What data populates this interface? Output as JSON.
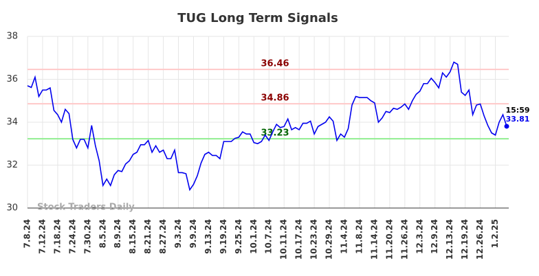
{
  "chart_data": {
    "type": "line",
    "title": "TUG Long Term Signals",
    "categories": [
      "7.8.24",
      null,
      null,
      null,
      "7.12.24",
      null,
      null,
      null,
      "7.18.24",
      null,
      null,
      null,
      "7.24.24",
      null,
      null,
      null,
      "7.30.24",
      null,
      null,
      null,
      "8.5.24",
      null,
      null,
      null,
      "8.9.24",
      null,
      null,
      null,
      "8.15.24",
      null,
      null,
      null,
      "8.21.24",
      null,
      null,
      null,
      "8.27.24",
      null,
      null,
      null,
      "9.3.24",
      null,
      null,
      null,
      "9.9.24",
      null,
      null,
      null,
      "9.13.24",
      null,
      null,
      null,
      "9.19.24",
      null,
      null,
      null,
      "9.25.24",
      null,
      null,
      null,
      "10.1.24",
      null,
      null,
      null,
      "10.7.24",
      null,
      null,
      null,
      "10.11.24",
      null,
      null,
      null,
      "10.17.24",
      null,
      null,
      null,
      "10.23.24",
      null,
      null,
      null,
      "10.29.24",
      null,
      null,
      null,
      "11.4.24",
      null,
      null,
      null,
      "11.8.24",
      null,
      null,
      null,
      "11.14.24",
      null,
      null,
      null,
      "11.20.24",
      null,
      null,
      null,
      "11.26.24",
      null,
      null,
      null,
      "12.3.24",
      null,
      null,
      null,
      "12.9.24",
      null,
      null,
      null,
      "12.13.24",
      null,
      null,
      null,
      "12.19.24",
      null,
      null,
      null,
      "12.26.24",
      null,
      null,
      null,
      "1.2.25",
      null,
      null,
      null
    ],
    "series": [
      {
        "color": "#0000ee",
        "values": [
          35.7,
          35.62,
          36.1,
          35.2,
          35.5,
          35.5,
          35.6,
          34.55,
          34.35,
          34.0,
          34.6,
          34.4,
          33.2,
          32.8,
          33.2,
          33.2,
          32.8,
          33.85,
          32.9,
          32.2,
          31.05,
          31.35,
          31.05,
          31.55,
          31.75,
          31.7,
          32.05,
          32.2,
          32.5,
          32.6,
          32.95,
          32.95,
          33.15,
          32.6,
          32.9,
          32.6,
          32.7,
          32.3,
          32.3,
          32.7,
          31.65,
          31.65,
          31.6,
          30.85,
          31.1,
          31.5,
          32.1,
          32.5,
          32.6,
          32.45,
          32.45,
          32.3,
          33.1,
          33.1,
          33.1,
          33.25,
          33.3,
          33.55,
          33.45,
          33.45,
          33.05,
          33.0,
          33.1,
          33.4,
          33.15,
          33.55,
          33.9,
          33.75,
          33.8,
          34.15,
          33.65,
          33.75,
          33.65,
          33.95,
          33.95,
          34.05,
          33.45,
          33.8,
          33.9,
          34.0,
          34.25,
          34.05,
          33.15,
          33.45,
          33.3,
          33.7,
          34.8,
          35.2,
          35.15,
          35.15,
          35.15,
          35.0,
          34.9,
          34.0,
          34.2,
          34.5,
          34.45,
          34.65,
          34.6,
          34.7,
          34.85,
          34.6,
          35.0,
          35.3,
          35.45,
          35.8,
          35.8,
          36.05,
          35.85,
          35.6,
          36.3,
          36.1,
          36.35,
          36.8,
          36.7,
          35.4,
          35.25,
          35.5,
          34.35,
          34.8,
          34.85,
          34.3,
          33.85,
          33.5,
          33.4,
          34.0,
          34.35,
          33.81
        ]
      }
    ],
    "last_time": "15:59",
    "hlines": [
      {
        "value": 36.46,
        "color": "#ffc8c8",
        "label_color": "#8b0000"
      },
      {
        "value": 34.86,
        "color": "#ffc8c8",
        "label_color": "#8b0000"
      },
      {
        "value": 33.23,
        "color": "#90ee90",
        "label_color": "#006400"
      }
    ],
    "ylim": [
      30,
      38
    ],
    "yticks": [
      30,
      32,
      34,
      36,
      38
    ],
    "grid": true,
    "watermark": "Stock Traders Daily"
  }
}
